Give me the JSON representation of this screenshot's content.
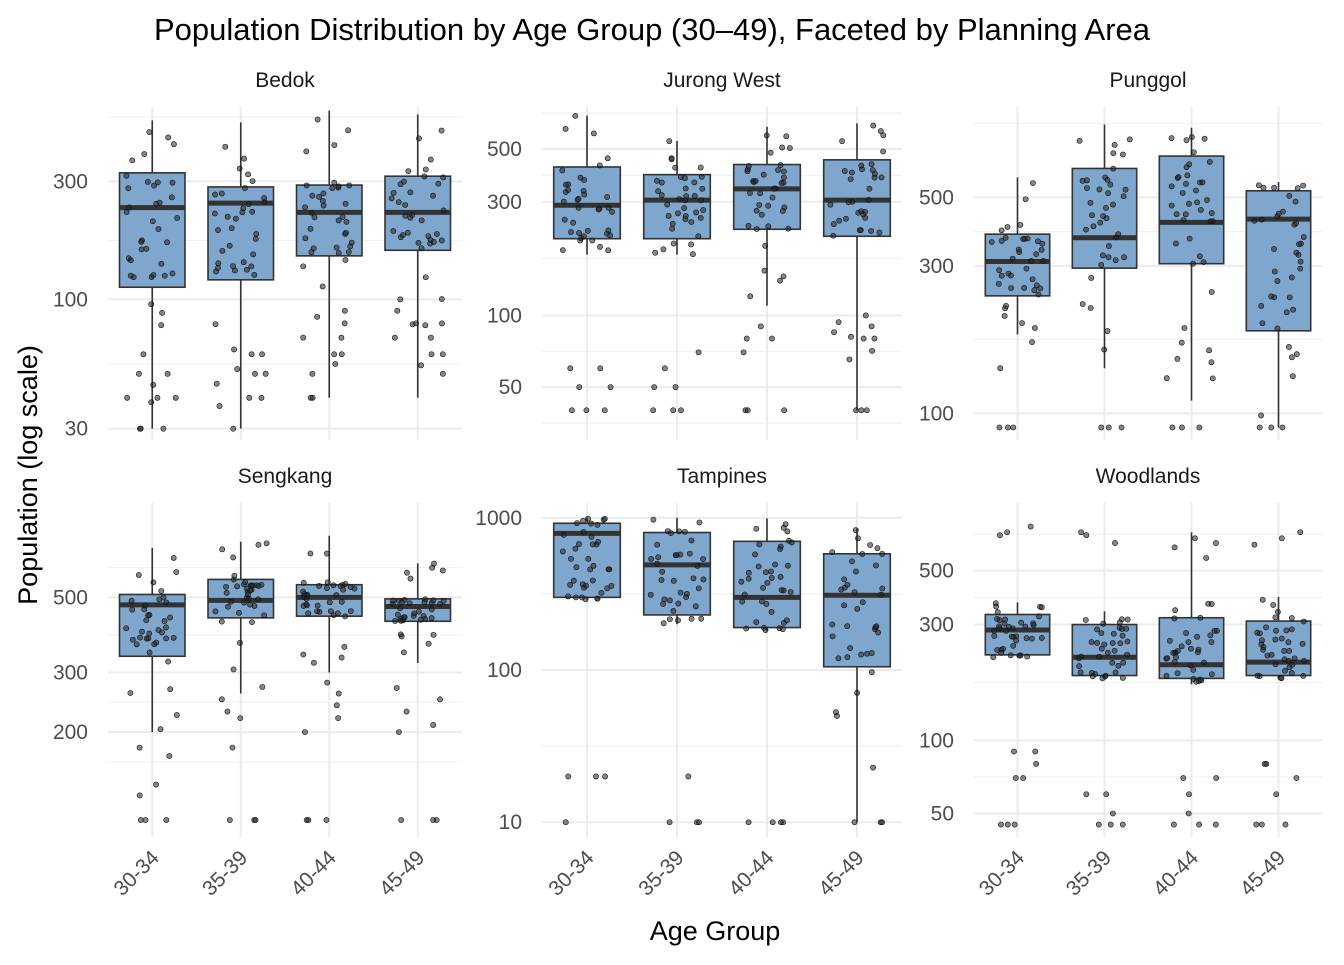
{
  "chart_data": {
    "type": "boxplot",
    "title": "Population Distribution by Age Group (30–49), Faceted by Planning Area",
    "xlabel": "Age Group",
    "ylabel": "Population (log scale)",
    "y_scale": "log",
    "categories": [
      "30-34",
      "35-39",
      "40-44",
      "45-49"
    ],
    "colors": {
      "box_fill": "#7fa7cd",
      "box_stroke": "#333333",
      "median": "#333333",
      "point": "#222222",
      "grid": "#ebebeb"
    },
    "facets": [
      {
        "name": "Bedok",
        "ylim": [
          27,
          600
        ],
        "ticks": [
          30,
          100,
          300
        ],
        "boxes": [
          {
            "category": "30-34",
            "q1": 112,
            "median": 235,
            "q3": 325,
            "lower": 30,
            "upper": 530
          },
          {
            "category": "35-39",
            "q1": 120,
            "median": 245,
            "q3": 285,
            "lower": 30,
            "upper": 520
          },
          {
            "category": "40-44",
            "q1": 150,
            "median": 225,
            "q3": 290,
            "lower": 40,
            "upper": 580
          },
          {
            "category": "45-49",
            "q1": 158,
            "median": 225,
            "q3": 315,
            "lower": 40,
            "upper": 560
          }
        ],
        "outliers": [
          {
            "category": "30-34",
            "values": [
              30,
              30,
              30,
              40,
              40,
              40,
              50,
              50,
              60
            ]
          },
          {
            "category": "35-39",
            "values": [
              30,
              40,
              40,
              50,
              50,
              60,
              60
            ]
          },
          {
            "category": "40-44",
            "values": [
              40,
              40,
              50,
              60,
              60,
              70,
              70,
              80,
              90
            ]
          },
          {
            "category": "45-49",
            "values": [
              50,
              60,
              60,
              70,
              70,
              80,
              80,
              90,
              100
            ]
          }
        ]
      },
      {
        "name": "Jurong West",
        "ylim": [
          30,
          750
        ],
        "ticks": [
          50,
          100,
          300,
          500
        ],
        "boxes": [
          {
            "category": "30-34",
            "q1": 210,
            "median": 290,
            "q3": 420,
            "lower": 180,
            "upper": 690
          },
          {
            "category": "35-39",
            "q1": 210,
            "median": 305,
            "q3": 390,
            "lower": 180,
            "upper": 540
          },
          {
            "category": "40-44",
            "q1": 230,
            "median": 340,
            "q3": 430,
            "lower": 110,
            "upper": 620
          },
          {
            "category": "45-49",
            "q1": 215,
            "median": 305,
            "q3": 450,
            "lower": 40,
            "upper": 640
          }
        ],
        "outliers": [
          {
            "category": "30-34",
            "values": [
              40,
              40,
              40,
              50,
              50,
              60,
              60
            ]
          },
          {
            "category": "35-39",
            "values": [
              40,
              40,
              40,
              50,
              50,
              60,
              70
            ]
          },
          {
            "category": "40-44",
            "values": [
              40,
              40,
              40,
              70,
              80,
              80,
              90
            ]
          },
          {
            "category": "45-49",
            "values": [
              40,
              40,
              40,
              80,
              80,
              90,
              100
            ]
          }
        ]
      },
      {
        "name": "Punggol",
        "ylim": [
          82,
          980
        ],
        "ticks": [
          100,
          300,
          500
        ],
        "boxes": [
          {
            "category": "30-34",
            "q1": 240,
            "median": 310,
            "q3": 380,
            "lower": 180,
            "upper": 580
          },
          {
            "category": "35-39",
            "q1": 295,
            "median": 370,
            "q3": 620,
            "lower": 140,
            "upper": 860
          },
          {
            "category": "40-44",
            "q1": 305,
            "median": 415,
            "q3": 680,
            "lower": 110,
            "upper": 840
          },
          {
            "category": "45-49",
            "q1": 185,
            "median": 425,
            "q3": 525,
            "lower": 90,
            "upper": 560
          }
        ],
        "outliers": [
          {
            "category": "30-34",
            "values": [
              90,
              90,
              90,
              140,
              170
            ]
          },
          {
            "category": "35-39",
            "values": [
              90,
              90,
              90
            ]
          },
          {
            "category": "40-44",
            "values": [
              90,
              90,
              90,
              130,
              150,
              160
            ]
          },
          {
            "category": "45-49",
            "values": [
              90,
              90,
              90
            ]
          }
        ]
      },
      {
        "name": "Sengkang",
        "ylim": [
          98,
          950
        ],
        "ticks": [
          200,
          300,
          500
        ],
        "boxes": [
          {
            "category": "30-34",
            "q1": 335,
            "median": 475,
            "q3": 510,
            "lower": 200,
            "upper": 700
          },
          {
            "category": "35-39",
            "q1": 435,
            "median": 490,
            "q3": 565,
            "lower": 260,
            "upper": 730
          },
          {
            "category": "40-44",
            "q1": 440,
            "median": 500,
            "q3": 545,
            "lower": 300,
            "upper": 760
          },
          {
            "category": "45-49",
            "q1": 425,
            "median": 470,
            "q3": 495,
            "lower": 320,
            "upper": 630
          }
        ],
        "outliers": [
          {
            "category": "30-34",
            "values": [
              110,
              110,
              110,
              130,
              140,
              170,
              180
            ]
          },
          {
            "category": "35-39",
            "values": [
              110,
              110,
              110,
              180,
              220,
              230,
              250
            ]
          },
          {
            "category": "40-44",
            "values": [
              110,
              110,
              110,
              200,
              220,
              240,
              260,
              280
            ]
          },
          {
            "category": "45-49",
            "values": [
              110,
              110,
              110,
              200,
              210,
              230,
              250,
              270
            ]
          }
        ]
      },
      {
        "name": "Tampines",
        "ylim": [
          8,
          1250
        ],
        "ticks": [
          10,
          100,
          1000
        ],
        "boxes": [
          {
            "category": "30-34",
            "q1": 300,
            "median": 790,
            "q3": 920,
            "lower": 290,
            "upper": 1000
          },
          {
            "category": "35-39",
            "q1": 230,
            "median": 490,
            "q3": 800,
            "lower": 200,
            "upper": 1000
          },
          {
            "category": "40-44",
            "q1": 190,
            "median": 300,
            "q3": 700,
            "lower": 180,
            "upper": 990
          },
          {
            "category": "45-49",
            "q1": 105,
            "median": 310,
            "q3": 580,
            "lower": 10,
            "upper": 850
          }
        ],
        "outliers": [
          {
            "category": "30-34",
            "values": [
              10,
              20,
              20,
              20
            ]
          },
          {
            "category": "35-39",
            "values": [
              10,
              10,
              10,
              20
            ]
          },
          {
            "category": "40-44",
            "values": [
              10,
              10,
              10,
              10
            ]
          },
          {
            "category": "45-49",
            "values": [
              10,
              10,
              10
            ]
          }
        ]
      },
      {
        "name": "Woodlands",
        "ylim": [
          40,
          950
        ],
        "ticks": [
          50,
          100,
          300,
          500
        ],
        "boxes": [
          {
            "category": "30-34",
            "q1": 225,
            "median": 285,
            "q3": 330,
            "lower": 220,
            "upper": 370
          },
          {
            "category": "35-39",
            "q1": 185,
            "median": 220,
            "q3": 300,
            "lower": 180,
            "upper": 340
          },
          {
            "category": "40-44",
            "q1": 180,
            "median": 205,
            "q3": 320,
            "lower": 170,
            "upper": 720
          },
          {
            "category": "45-49",
            "q1": 185,
            "median": 210,
            "q3": 310,
            "lower": 180,
            "upper": 390
          }
        ],
        "outliers": [
          {
            "category": "30-34",
            "values": [
              45,
              45,
              45,
              70,
              70,
              80,
              90,
              90,
              700,
              720,
              760
            ]
          },
          {
            "category": "35-39",
            "values": [
              45,
              45,
              45,
              50,
              60,
              60,
              650,
              700,
              720
            ]
          },
          {
            "category": "40-44",
            "values": [
              45,
              45,
              45,
              50,
              60,
              70,
              70,
              650,
              680
            ]
          },
          {
            "category": "45-49",
            "values": [
              45,
              45,
              45,
              60,
              70,
              80,
              80,
              640,
              680,
              720
            ]
          }
        ]
      }
    ]
  }
}
